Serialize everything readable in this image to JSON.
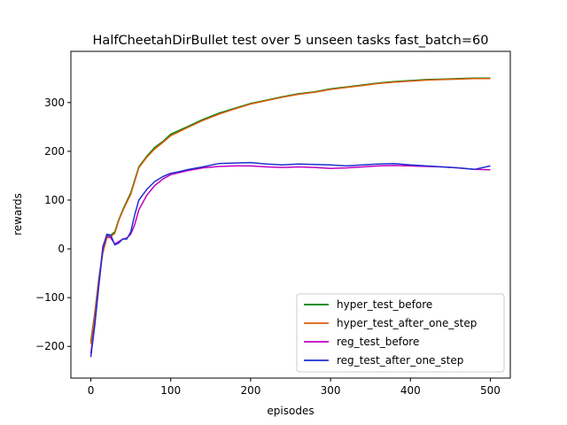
{
  "chart_data": {
    "type": "line",
    "title": "HalfCheetahDirBullet test over 5 unseen tasks fast_batch=60",
    "xlabel": "episodes",
    "ylabel": "rewards",
    "xlim": [
      -25,
      525
    ],
    "ylim": [
      -265,
      405
    ],
    "xticks": [
      0,
      100,
      200,
      300,
      400,
      500
    ],
    "yticks": [
      -200,
      -100,
      0,
      100,
      200,
      300
    ],
    "xtick_labels": [
      "0",
      "100",
      "200",
      "300",
      "400",
      "500"
    ],
    "ytick_labels": [
      "−200",
      "−100",
      "0",
      "100",
      "200",
      "300"
    ],
    "grid": false,
    "legend_position": "lower-right",
    "series": [
      {
        "name": "hyper_test_before",
        "color": "#008000",
        "x": [
          0,
          5,
          10,
          15,
          20,
          25,
          30,
          35,
          40,
          50,
          60,
          70,
          80,
          90,
          100,
          120,
          140,
          160,
          180,
          200,
          220,
          240,
          260,
          280,
          300,
          320,
          340,
          360,
          380,
          400,
          420,
          440,
          460,
          480,
          500
        ],
        "y": [
          -190,
          -130,
          -60,
          -5,
          25,
          28,
          35,
          60,
          80,
          115,
          168,
          190,
          208,
          220,
          235,
          250,
          265,
          278,
          288,
          298,
          305,
          312,
          318,
          322,
          328,
          332,
          336,
          340,
          343,
          345,
          347,
          348,
          349,
          350,
          350
        ]
      },
      {
        "name": "hyper_test_after_one_step",
        "color": "#d95f0e",
        "x": [
          0,
          5,
          10,
          15,
          20,
          25,
          30,
          35,
          40,
          50,
          60,
          70,
          80,
          90,
          100,
          120,
          140,
          160,
          180,
          200,
          220,
          240,
          260,
          280,
          300,
          320,
          340,
          360,
          380,
          400,
          420,
          440,
          460,
          480,
          500
        ],
        "y": [
          -195,
          -135,
          -62,
          -8,
          22,
          25,
          32,
          58,
          78,
          112,
          166,
          188,
          205,
          218,
          232,
          248,
          263,
          276,
          287,
          297,
          304,
          311,
          317,
          321,
          327,
          331,
          335,
          339,
          342,
          344,
          346,
          347,
          348,
          349,
          349
        ]
      },
      {
        "name": "reg_test_before",
        "color": "#c000c0",
        "x": [
          0,
          5,
          10,
          15,
          20,
          25,
          30,
          35,
          40,
          45,
          50,
          55,
          60,
          70,
          80,
          90,
          100,
          120,
          140,
          160,
          180,
          200,
          220,
          240,
          260,
          280,
          300,
          320,
          340,
          360,
          380,
          400,
          420,
          440,
          460,
          480,
          500
        ],
        "y": [
          -215,
          -150,
          -70,
          5,
          28,
          22,
          10,
          15,
          20,
          22,
          30,
          50,
          80,
          110,
          130,
          143,
          152,
          160,
          166,
          169,
          170,
          170,
          168,
          167,
          168,
          167,
          165,
          166,
          168,
          170,
          171,
          170,
          169,
          168,
          166,
          163,
          162
        ]
      },
      {
        "name": "reg_test_after_one_step",
        "color": "#1f2fd0",
        "x": [
          0,
          5,
          10,
          15,
          20,
          25,
          30,
          35,
          40,
          45,
          50,
          55,
          60,
          70,
          80,
          90,
          100,
          110,
          120,
          140,
          160,
          180,
          200,
          220,
          240,
          260,
          280,
          300,
          320,
          340,
          360,
          380,
          400,
          420,
          440,
          460,
          480,
          500
        ],
        "y": [
          -222,
          -155,
          -75,
          0,
          30,
          28,
          8,
          12,
          20,
          20,
          35,
          70,
          100,
          122,
          138,
          148,
          155,
          158,
          162,
          168,
          175,
          176,
          177,
          174,
          172,
          174,
          173,
          172,
          170,
          172,
          174,
          175,
          172,
          170,
          168,
          166,
          163,
          170
        ]
      }
    ]
  }
}
